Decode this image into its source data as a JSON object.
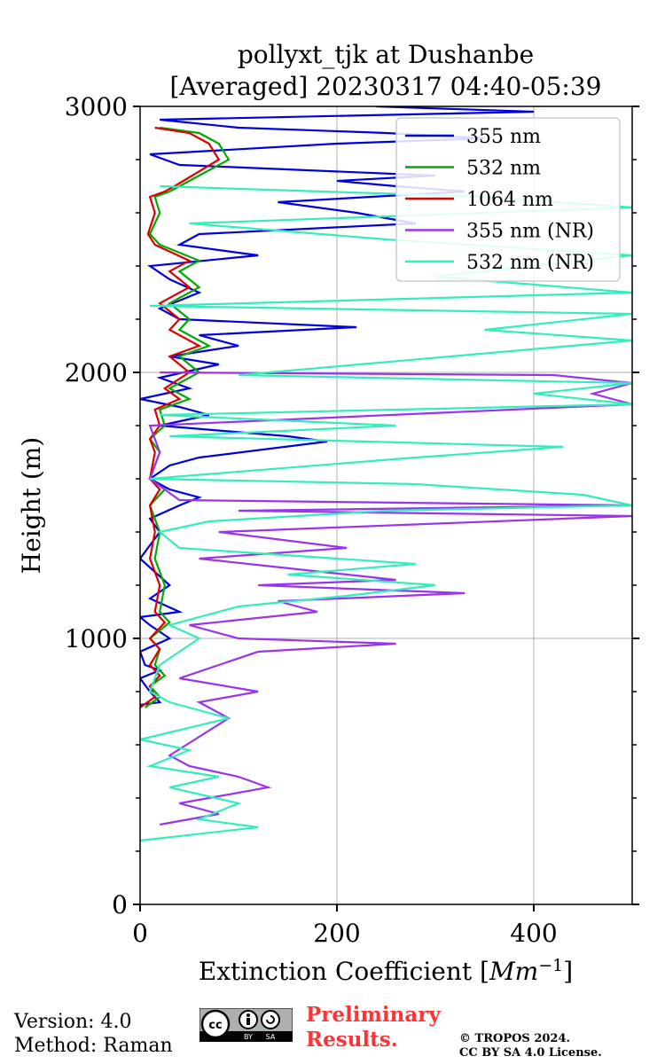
{
  "chart_data": {
    "type": "line",
    "title_line1": "pollyxt_tjk at Dushanbe",
    "title_line2": "[Averaged] 20230317 04:40-05:39",
    "xlabel": "Extinction Coefficient [",
    "xlabel_unit": "Mm",
    "xlabel_exp": "−1",
    "xlabel_close": "]",
    "ylabel": "Height (m)",
    "xlim": [
      0,
      500
    ],
    "ylim": [
      0,
      3000
    ],
    "xticks": [
      0,
      200,
      400
    ],
    "yticks": [
      0,
      1000,
      2000,
      3000
    ],
    "grid": true,
    "legend_position": "top-right",
    "series": [
      {
        "name": "355 nm",
        "color": "#0000dd",
        "points": [
          [
            0,
            750
          ],
          [
            20,
            760
          ],
          [
            10,
            800
          ],
          [
            0,
            850
          ],
          [
            20,
            880
          ],
          [
            5,
            900
          ],
          [
            0,
            950
          ],
          [
            30,
            1000
          ],
          [
            10,
            1050
          ],
          [
            0,
            1080
          ],
          [
            40,
            1100
          ],
          [
            10,
            1150
          ],
          [
            30,
            1200
          ],
          [
            0,
            1300
          ],
          [
            20,
            1400
          ],
          [
            10,
            1450
          ],
          [
            40,
            1500
          ],
          [
            60,
            1530
          ],
          [
            30,
            1560
          ],
          [
            10,
            1600
          ],
          [
            30,
            1650
          ],
          [
            60,
            1680
          ],
          [
            190,
            1740
          ],
          [
            150,
            1760
          ],
          [
            20,
            1800
          ],
          [
            70,
            1840
          ],
          [
            40,
            1870
          ],
          [
            0,
            1900
          ],
          [
            50,
            1940
          ],
          [
            20,
            1980
          ],
          [
            80,
            2030
          ],
          [
            30,
            2060
          ],
          [
            100,
            2100
          ],
          [
            60,
            2140
          ],
          [
            220,
            2170
          ],
          [
            40,
            2200
          ],
          [
            20,
            2240
          ],
          [
            60,
            2300
          ],
          [
            30,
            2350
          ],
          [
            10,
            2400
          ],
          [
            120,
            2440
          ],
          [
            40,
            2480
          ],
          [
            60,
            2520
          ],
          [
            280,
            2560
          ],
          [
            220,
            2600
          ],
          [
            140,
            2640
          ],
          [
            330,
            2680
          ],
          [
            260,
            2700
          ],
          [
            200,
            2720
          ],
          [
            300,
            2740
          ],
          [
            40,
            2780
          ],
          [
            10,
            2820
          ],
          [
            200,
            2860
          ],
          [
            350,
            2880
          ],
          [
            250,
            2900
          ],
          [
            100,
            2920
          ],
          [
            20,
            2950
          ],
          [
            400,
            2980
          ],
          [
            240,
            3000
          ]
        ]
      },
      {
        "name": "532 nm",
        "color": "#00aa00",
        "points": [
          [
            5,
            740
          ],
          [
            20,
            780
          ],
          [
            10,
            820
          ],
          [
            25,
            860
          ],
          [
            15,
            900
          ],
          [
            20,
            960
          ],
          [
            10,
            1000
          ],
          [
            30,
            1060
          ],
          [
            20,
            1100
          ],
          [
            25,
            1200
          ],
          [
            15,
            1300
          ],
          [
            20,
            1400
          ],
          [
            10,
            1500
          ],
          [
            25,
            1560
          ],
          [
            10,
            1600
          ],
          [
            20,
            1700
          ],
          [
            10,
            1750
          ],
          [
            25,
            1800
          ],
          [
            20,
            1860
          ],
          [
            50,
            1900
          ],
          [
            30,
            1940
          ],
          [
            60,
            2000
          ],
          [
            40,
            2060
          ],
          [
            70,
            2100
          ],
          [
            40,
            2160
          ],
          [
            50,
            2200
          ],
          [
            30,
            2260
          ],
          [
            60,
            2320
          ],
          [
            40,
            2380
          ],
          [
            60,
            2420
          ],
          [
            20,
            2480
          ],
          [
            10,
            2520
          ],
          [
            20,
            2600
          ],
          [
            15,
            2660
          ],
          [
            30,
            2680
          ],
          [
            40,
            2700
          ],
          [
            90,
            2800
          ],
          [
            80,
            2860
          ],
          [
            60,
            2900
          ],
          [
            20,
            2920
          ]
        ]
      },
      {
        "name": "1064 nm",
        "color": "#dd0000",
        "points": [
          [
            0,
            740
          ],
          [
            15,
            780
          ],
          [
            10,
            820
          ],
          [
            20,
            860
          ],
          [
            10,
            900
          ],
          [
            20,
            960
          ],
          [
            10,
            1000
          ],
          [
            25,
            1060
          ],
          [
            15,
            1100
          ],
          [
            20,
            1200
          ],
          [
            10,
            1300
          ],
          [
            15,
            1400
          ],
          [
            10,
            1500
          ],
          [
            20,
            1560
          ],
          [
            10,
            1600
          ],
          [
            15,
            1700
          ],
          [
            10,
            1750
          ],
          [
            20,
            1800
          ],
          [
            15,
            1860
          ],
          [
            40,
            1900
          ],
          [
            25,
            1940
          ],
          [
            50,
            2000
          ],
          [
            30,
            2060
          ],
          [
            60,
            2100
          ],
          [
            30,
            2160
          ],
          [
            40,
            2200
          ],
          [
            20,
            2260
          ],
          [
            50,
            2320
          ],
          [
            30,
            2380
          ],
          [
            50,
            2420
          ],
          [
            15,
            2480
          ],
          [
            8,
            2520
          ],
          [
            15,
            2600
          ],
          [
            10,
            2660
          ],
          [
            25,
            2680
          ],
          [
            35,
            2700
          ],
          [
            80,
            2800
          ],
          [
            70,
            2860
          ],
          [
            50,
            2900
          ],
          [
            15,
            2920
          ]
        ]
      },
      {
        "name": "355 nm (NR)",
        "color": "#9933ee",
        "points": [
          [
            20,
            300
          ],
          [
            80,
            340
          ],
          [
            40,
            380
          ],
          [
            130,
            440
          ],
          [
            100,
            480
          ],
          [
            50,
            520
          ],
          [
            30,
            560
          ],
          [
            90,
            700
          ],
          [
            60,
            760
          ],
          [
            120,
            800
          ],
          [
            40,
            850
          ],
          [
            80,
            900
          ],
          [
            120,
            950
          ],
          [
            260,
            980
          ],
          [
            100,
            1000
          ],
          [
            50,
            1050
          ],
          [
            180,
            1100
          ],
          [
            140,
            1140
          ],
          [
            330,
            1170
          ],
          [
            120,
            1200
          ],
          [
            260,
            1220
          ],
          [
            160,
            1260
          ],
          [
            60,
            1300
          ],
          [
            210,
            1340
          ],
          [
            80,
            1400
          ],
          [
            500,
            1460
          ],
          [
            100,
            1480
          ],
          [
            500,
            1500
          ],
          [
            40,
            1520
          ],
          [
            10,
            1600
          ],
          [
            20,
            1700
          ],
          [
            10,
            1800
          ],
          [
            500,
            1880
          ],
          [
            460,
            1920
          ],
          [
            500,
            1960
          ],
          [
            420,
            1990
          ],
          [
            20,
            2000
          ]
        ]
      },
      {
        "name": "532 nm (NR)",
        "color": "#33eebb",
        "points": [
          [
            0,
            240
          ],
          [
            120,
            290
          ],
          [
            60,
            320
          ],
          [
            100,
            380
          ],
          [
            30,
            440
          ],
          [
            80,
            480
          ],
          [
            10,
            520
          ],
          [
            50,
            580
          ],
          [
            0,
            620
          ],
          [
            90,
            700
          ],
          [
            30,
            760
          ],
          [
            10,
            800
          ],
          [
            20,
            900
          ],
          [
            60,
            1000
          ],
          [
            30,
            1050
          ],
          [
            100,
            1120
          ],
          [
            210,
            1160
          ],
          [
            300,
            1200
          ],
          [
            150,
            1240
          ],
          [
            280,
            1280
          ],
          [
            40,
            1340
          ],
          [
            20,
            1400
          ],
          [
            70,
            1440
          ],
          [
            250,
            1480
          ],
          [
            500,
            1500
          ],
          [
            450,
            1540
          ],
          [
            280,
            1580
          ],
          [
            10,
            1600
          ],
          [
            280,
            1680
          ],
          [
            430,
            1720
          ],
          [
            30,
            1760
          ],
          [
            260,
            1800
          ],
          [
            20,
            1840
          ],
          [
            500,
            1880
          ],
          [
            400,
            1920
          ],
          [
            500,
            1960
          ],
          [
            100,
            1990
          ],
          [
            500,
            2120
          ],
          [
            350,
            2160
          ],
          [
            500,
            2220
          ],
          [
            10,
            2250
          ],
          [
            500,
            2300
          ],
          [
            300,
            2360
          ],
          [
            500,
            2440
          ],
          [
            250,
            2500
          ],
          [
            50,
            2560
          ],
          [
            500,
            2620
          ],
          [
            350,
            2660
          ],
          [
            20,
            2700
          ]
        ]
      }
    ]
  },
  "footer": {
    "version": "Version: 4.0",
    "method": "Method: Raman",
    "prelim_line1": "Preliminary",
    "prelim_line2": "Results.",
    "copyright_line1": "© TROPOS 2024.",
    "copyright_line2": "CC BY SA 4.0 License.",
    "badge_by": "BY",
    "badge_sa": "SA"
  },
  "colors": {
    "prelim": "#ff3333",
    "grid": "#b0b0b0"
  }
}
